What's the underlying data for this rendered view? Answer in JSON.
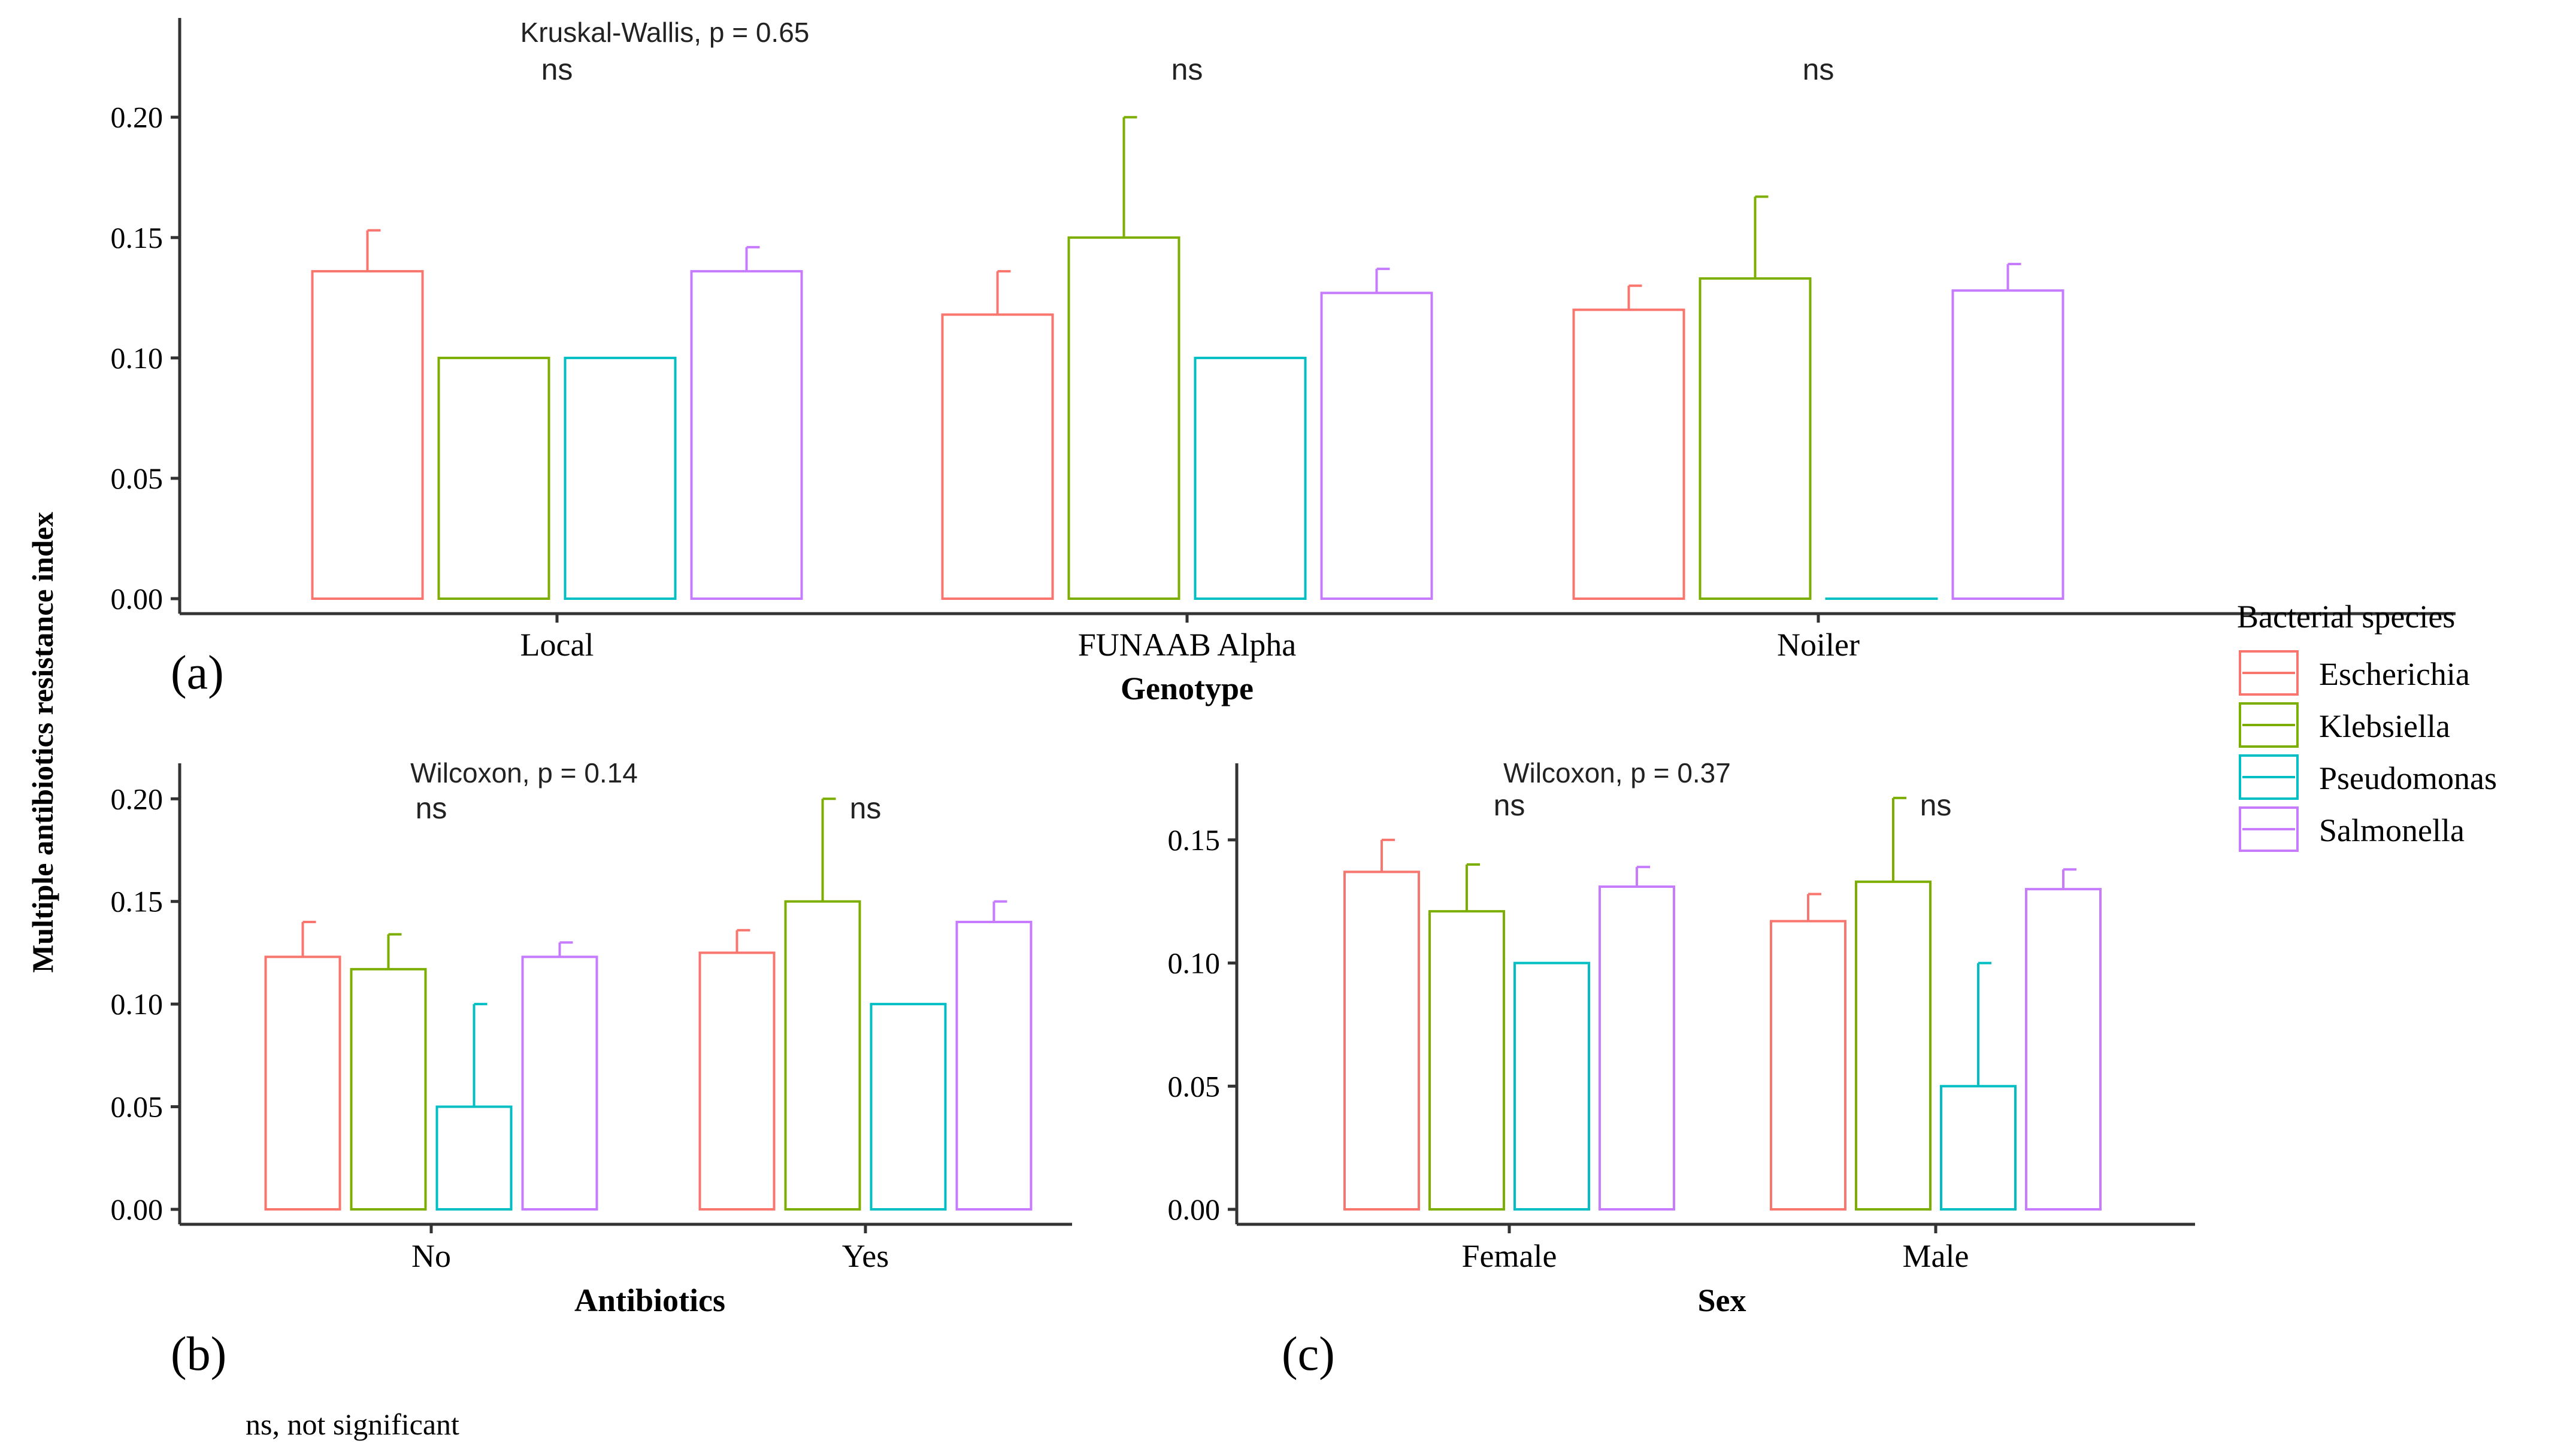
{
  "y_axis_label": "Multiple antibiotics resistance index",
  "legend": {
    "title": "Bacterial species",
    "entries": [
      {
        "name": "Escherichia",
        "color": "#F8766D"
      },
      {
        "name": "Klebsiella",
        "color": "#7CAE00"
      },
      {
        "name": "Pseudomonas",
        "color": "#00BFC4"
      },
      {
        "name": "Salmonella",
        "color": "#C77CFF"
      }
    ]
  },
  "footnote": "ns, not significant",
  "chart_data": [
    {
      "type": "bar",
      "panel_label": "(a)",
      "test_label": "Kruskal-Wallis, p = 0.65",
      "xlabel": "Genotype",
      "ylabel": "Multiple antibiotics resistance index",
      "ylim": [
        0,
        0.235
      ],
      "yticks": [
        0.0,
        0.05,
        0.1,
        0.15,
        0.2
      ],
      "ytick_labels": [
        "0.00",
        "0.05",
        "0.10",
        "0.15",
        "0.20"
      ],
      "categories": [
        "Local",
        "FUNAAB Alpha",
        "Noiler"
      ],
      "significance": [
        "ns",
        "ns",
        "ns"
      ],
      "series": [
        {
          "name": "Escherichia",
          "values": [
            0.136,
            0.118,
            0.12
          ],
          "errors": [
            0.153,
            0.136,
            0.13
          ]
        },
        {
          "name": "Klebsiella",
          "values": [
            0.1,
            0.15,
            0.133
          ],
          "errors": [
            null,
            0.2,
            0.167
          ]
        },
        {
          "name": "Pseudomonas",
          "values": [
            0.1,
            0.1,
            0.0
          ],
          "errors": [
            null,
            null,
            null
          ]
        },
        {
          "name": "Salmonella",
          "values": [
            0.136,
            0.127,
            0.128
          ],
          "errors": [
            0.146,
            0.137,
            0.139
          ]
        }
      ]
    },
    {
      "type": "bar",
      "panel_label": "(b)",
      "test_label": "Wilcoxon, p = 0.14",
      "xlabel": "Antibiotics",
      "ylim": [
        0,
        0.21
      ],
      "yticks": [
        0.0,
        0.05,
        0.1,
        0.15,
        0.2
      ],
      "ytick_labels": [
        "0.00",
        "0.05",
        "0.10",
        "0.15",
        "0.20"
      ],
      "categories": [
        "No",
        "Yes"
      ],
      "significance": [
        "ns",
        "ns"
      ],
      "series": [
        {
          "name": "Escherichia",
          "values": [
            0.123,
            0.125
          ],
          "errors": [
            0.14,
            0.136
          ]
        },
        {
          "name": "Klebsiella",
          "values": [
            0.117,
            0.15
          ],
          "errors": [
            0.134,
            0.2
          ]
        },
        {
          "name": "Pseudomonas",
          "values": [
            0.05,
            0.1
          ],
          "errors": [
            0.1,
            null
          ]
        },
        {
          "name": "Salmonella",
          "values": [
            0.123,
            0.14
          ],
          "errors": [
            0.13,
            0.15
          ]
        }
      ]
    },
    {
      "type": "bar",
      "panel_label": "(c)",
      "test_label": "Wilcoxon, p = 0.37",
      "xlabel": "Sex",
      "ylim": [
        0,
        0.175
      ],
      "yticks": [
        0.0,
        0.05,
        0.1,
        0.15
      ],
      "ytick_labels": [
        "0.00",
        "0.05",
        "0.10",
        "0.15"
      ],
      "categories": [
        "Female",
        "Male"
      ],
      "significance": [
        "ns",
        "ns"
      ],
      "series": [
        {
          "name": "Escherichia",
          "values": [
            0.137,
            0.117
          ],
          "errors": [
            0.15,
            0.128
          ]
        },
        {
          "name": "Klebsiella",
          "values": [
            0.121,
            0.133
          ],
          "errors": [
            0.14,
            0.167
          ]
        },
        {
          "name": "Pseudomonas",
          "values": [
            0.1,
            0.05
          ],
          "errors": [
            null,
            0.1
          ]
        },
        {
          "name": "Salmonella",
          "values": [
            0.131,
            0.13
          ],
          "errors": [
            0.139,
            0.138
          ]
        }
      ]
    }
  ]
}
